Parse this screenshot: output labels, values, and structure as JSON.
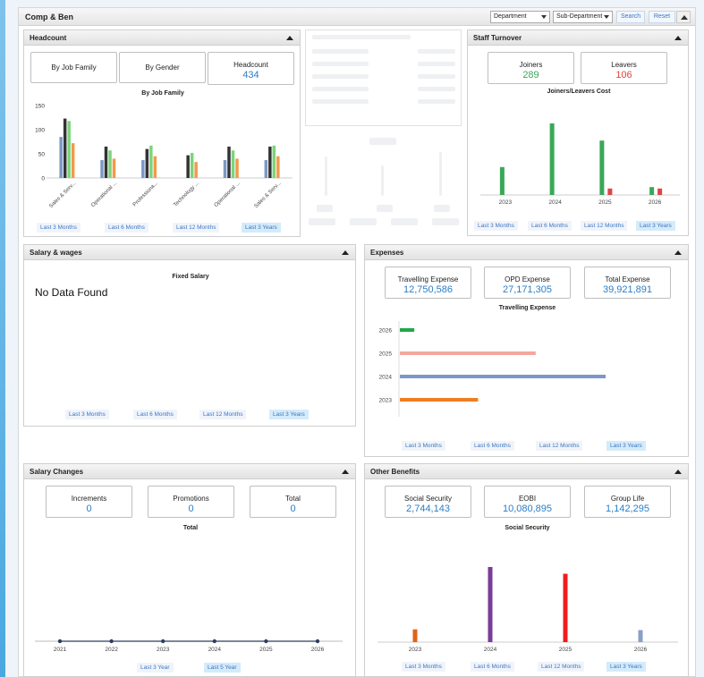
{
  "colors": {
    "accent": "#2a7ec7",
    "green": "#3aa857",
    "red": "#e04444",
    "blue_bar": "#7b98c6",
    "dark_bar": "#333333",
    "light_green_bar": "#7bd47b",
    "orange_bar": "#f39a4a"
  },
  "header": {
    "title": "Comp & Ben",
    "department_label": "Department",
    "subdepartment_label": "Sub-Department",
    "search_label": "Search",
    "reset_label": "Reset"
  },
  "headcount": {
    "title": "Headcount",
    "tabs": [
      "By Job Family",
      "By Gender"
    ],
    "kpi_label": "Headcount",
    "kpi_value": "434",
    "chart_title": "By Job Family",
    "ranges": [
      "Last 3 Months",
      "Last 6 Months",
      "Last 12 Months",
      "Last 3 Years"
    ]
  },
  "turnover": {
    "title": "Staff Turnover",
    "joiners_label": "Joiners",
    "joiners_value": "289",
    "leavers_label": "Leavers",
    "leavers_value": "106",
    "chart_title": "Joiners/Leavers Cost",
    "ranges": [
      "Last 3 Months",
      "Last 6 Months",
      "Last 12 Months",
      "Last 3 Years"
    ]
  },
  "salary": {
    "title": "Salary & wages",
    "chart_title": "Fixed Salary",
    "no_data": "No Data Found",
    "ranges": [
      "Last 3 Months",
      "Last 6 Months",
      "Last 12 Months",
      "Last 3 Years"
    ]
  },
  "expenses": {
    "title": "Expenses",
    "kpis": [
      {
        "label": "Travelling Expense",
        "value": "12,750,586"
      },
      {
        "label": "OPD Expense",
        "value": "27,171,305"
      },
      {
        "label": "Total Expense",
        "value": "39,921,891"
      }
    ],
    "chart_title": "Travelling Expense",
    "ranges": [
      "Last 3 Months",
      "Last 6 Months",
      "Last 12 Months",
      "Last 3 Years"
    ]
  },
  "salary_changes": {
    "title": "Salary Changes",
    "kpis": [
      {
        "label": "Increments",
        "value": "0"
      },
      {
        "label": "Promotions",
        "value": "0"
      },
      {
        "label": "Total",
        "value": "0"
      }
    ],
    "chart_title": "Total",
    "ranges": [
      "Last 3 Year",
      "Last 5 Year"
    ]
  },
  "benefits": {
    "title": "Other Benefits",
    "kpis": [
      {
        "label": "Social Security",
        "value": "2,744,143"
      },
      {
        "label": "EOBI",
        "value": "10,080,895"
      },
      {
        "label": "Group Life",
        "value": "1,142,295"
      }
    ],
    "chart_title": "Social Security",
    "ranges": [
      "Last 3 Months",
      "Last 6 Months",
      "Last 12 Months",
      "Last 3 Years"
    ]
  },
  "chart_data": [
    {
      "type": "bar",
      "categories": [
        "Sales & Serv...",
        "Operational ...",
        "Professiona...",
        "Technology ...",
        "Operational ...",
        "Sales & Serv..."
      ],
      "ylim": [
        0,
        150
      ],
      "yticks": [
        0,
        50,
        100,
        150
      ],
      "series": [
        {
          "color": "#7b98c6",
          "values": [
            85,
            37,
            37,
            0,
            37,
            37
          ]
        },
        {
          "color": "#333333",
          "values": [
            123,
            65,
            60,
            47,
            65,
            65
          ]
        },
        {
          "color": "#7bd47b",
          "values": [
            118,
            57,
            67,
            52,
            57,
            67
          ]
        },
        {
          "color": "#f39a4a",
          "values": [
            72,
            40,
            45,
            33,
            40,
            45
          ]
        }
      ]
    },
    {
      "type": "bar",
      "categories": [
        "2023",
        "2024",
        "2025",
        "2026"
      ],
      "series": [
        {
          "color": "#3aa857",
          "values": [
            39,
            100,
            76,
            11
          ]
        },
        {
          "color": "#e04444",
          "values": [
            0,
            0,
            9,
            9
          ]
        }
      ]
    },
    {
      "type": "bar",
      "orientation": "horizontal",
      "categories": [
        "2026",
        "2025",
        "2024",
        "2023"
      ],
      "series": [
        {
          "values": [
            7,
            66,
            100,
            38
          ],
          "colors": [
            "#20a84a",
            "#f4a79c",
            "#7b98c6",
            "#ef7d22"
          ]
        }
      ]
    },
    {
      "type": "line",
      "categories": [
        "2021",
        "2022",
        "2023",
        "2024",
        "2025",
        "2026"
      ],
      "series": [
        {
          "values": [
            0,
            0,
            0,
            0,
            0,
            0
          ]
        }
      ]
    },
    {
      "type": "bar",
      "categories": [
        "2023",
        "2024",
        "2025",
        "2026"
      ],
      "series": [
        {
          "values": [
            17,
            100,
            91,
            16
          ],
          "colors": [
            "#e0641a",
            "#7b3b99",
            "#f01c1c",
            "#8a9fc7"
          ]
        }
      ]
    }
  ]
}
